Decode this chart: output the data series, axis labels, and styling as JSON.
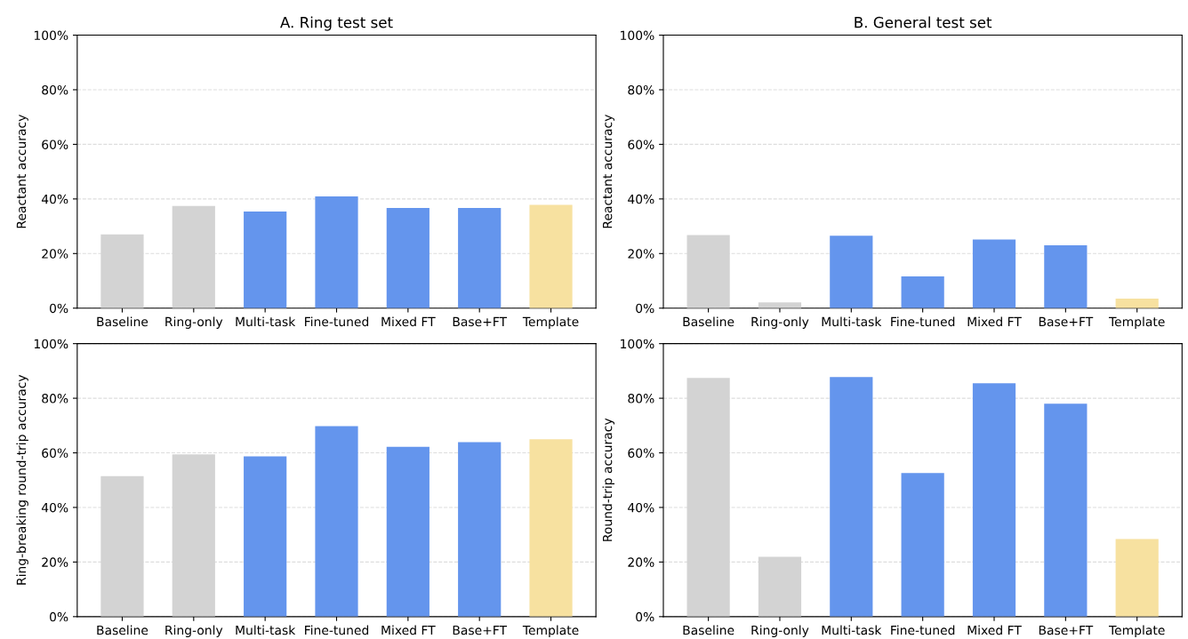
{
  "chart_data": [
    {
      "type": "bar",
      "title": "A. Ring test set",
      "ylabel": "Reactant accuracy",
      "categories": [
        "Baseline",
        "Ring-only",
        "Multi-task",
        "Fine-tuned",
        "Mixed FT",
        "Base+FT",
        "Template"
      ],
      "values": [
        27.0,
        37.4,
        35.4,
        40.9,
        36.7,
        36.7,
        37.8
      ],
      "colors": [
        "#d3d3d3",
        "#d3d3d3",
        "#6495ed",
        "#6495ed",
        "#6495ed",
        "#6495ed",
        "#f7e1a0"
      ],
      "ylim": [
        0,
        100
      ],
      "yticks": [
        {
          "value": 0,
          "label": "0%"
        },
        {
          "value": 20,
          "label": "20%"
        },
        {
          "value": 40,
          "label": "40%"
        },
        {
          "value": 60,
          "label": "60%"
        },
        {
          "value": 80,
          "label": "80%"
        },
        {
          "value": 100,
          "label": "100%"
        }
      ],
      "grid": "y"
    },
    {
      "type": "bar",
      "title": "B. General test set",
      "ylabel": "Reactant accuracy",
      "categories": [
        "Baseline",
        "Ring-only",
        "Multi-task",
        "Fine-tuned",
        "Mixed FT",
        "Base+FT",
        "Template"
      ],
      "values": [
        26.8,
        2.1,
        26.5,
        11.6,
        25.1,
        23.0,
        3.5
      ],
      "colors": [
        "#d3d3d3",
        "#d3d3d3",
        "#6495ed",
        "#6495ed",
        "#6495ed",
        "#6495ed",
        "#f7e1a0"
      ],
      "ylim": [
        0,
        100
      ],
      "yticks": [
        {
          "value": 0,
          "label": "0%"
        },
        {
          "value": 20,
          "label": "20%"
        },
        {
          "value": 40,
          "label": "40%"
        },
        {
          "value": 60,
          "label": "60%"
        },
        {
          "value": 80,
          "label": "80%"
        },
        {
          "value": 100,
          "label": "100%"
        }
      ],
      "grid": "y"
    },
    {
      "type": "bar",
      "ylabel": "Ring-breaking round-trip accuracy",
      "categories": [
        "Baseline",
        "Ring-only",
        "Multi-task",
        "Fine-tuned",
        "Mixed FT",
        "Base+FT",
        "Template"
      ],
      "values": [
        51.5,
        59.4,
        58.7,
        69.8,
        62.2,
        63.9,
        65.0
      ],
      "colors": [
        "#d3d3d3",
        "#d3d3d3",
        "#6495ed",
        "#6495ed",
        "#6495ed",
        "#6495ed",
        "#f7e1a0"
      ],
      "ylim": [
        0,
        100
      ],
      "yticks": [
        {
          "value": 0,
          "label": "0%"
        },
        {
          "value": 20,
          "label": "20%"
        },
        {
          "value": 40,
          "label": "40%"
        },
        {
          "value": 60,
          "label": "60%"
        },
        {
          "value": 80,
          "label": "80%"
        },
        {
          "value": 100,
          "label": "100%"
        }
      ],
      "grid": "y"
    },
    {
      "type": "bar",
      "ylabel": "Round-trip accuracy",
      "categories": [
        "Baseline",
        "Ring-only",
        "Multi-task",
        "Fine-tuned",
        "Mixed FT",
        "Base+FT",
        "Template"
      ],
      "values": [
        87.4,
        21.9,
        87.8,
        52.6,
        85.5,
        78.0,
        28.4
      ],
      "colors": [
        "#d3d3d3",
        "#d3d3d3",
        "#6495ed",
        "#6495ed",
        "#6495ed",
        "#6495ed",
        "#f7e1a0"
      ],
      "ylim": [
        0,
        100
      ],
      "yticks": [
        {
          "value": 0,
          "label": "0%"
        },
        {
          "value": 20,
          "label": "20%"
        },
        {
          "value": 40,
          "label": "40%"
        },
        {
          "value": 60,
          "label": "60%"
        },
        {
          "value": 80,
          "label": "80%"
        },
        {
          "value": 100,
          "label": "100%"
        }
      ],
      "grid": "y"
    }
  ]
}
